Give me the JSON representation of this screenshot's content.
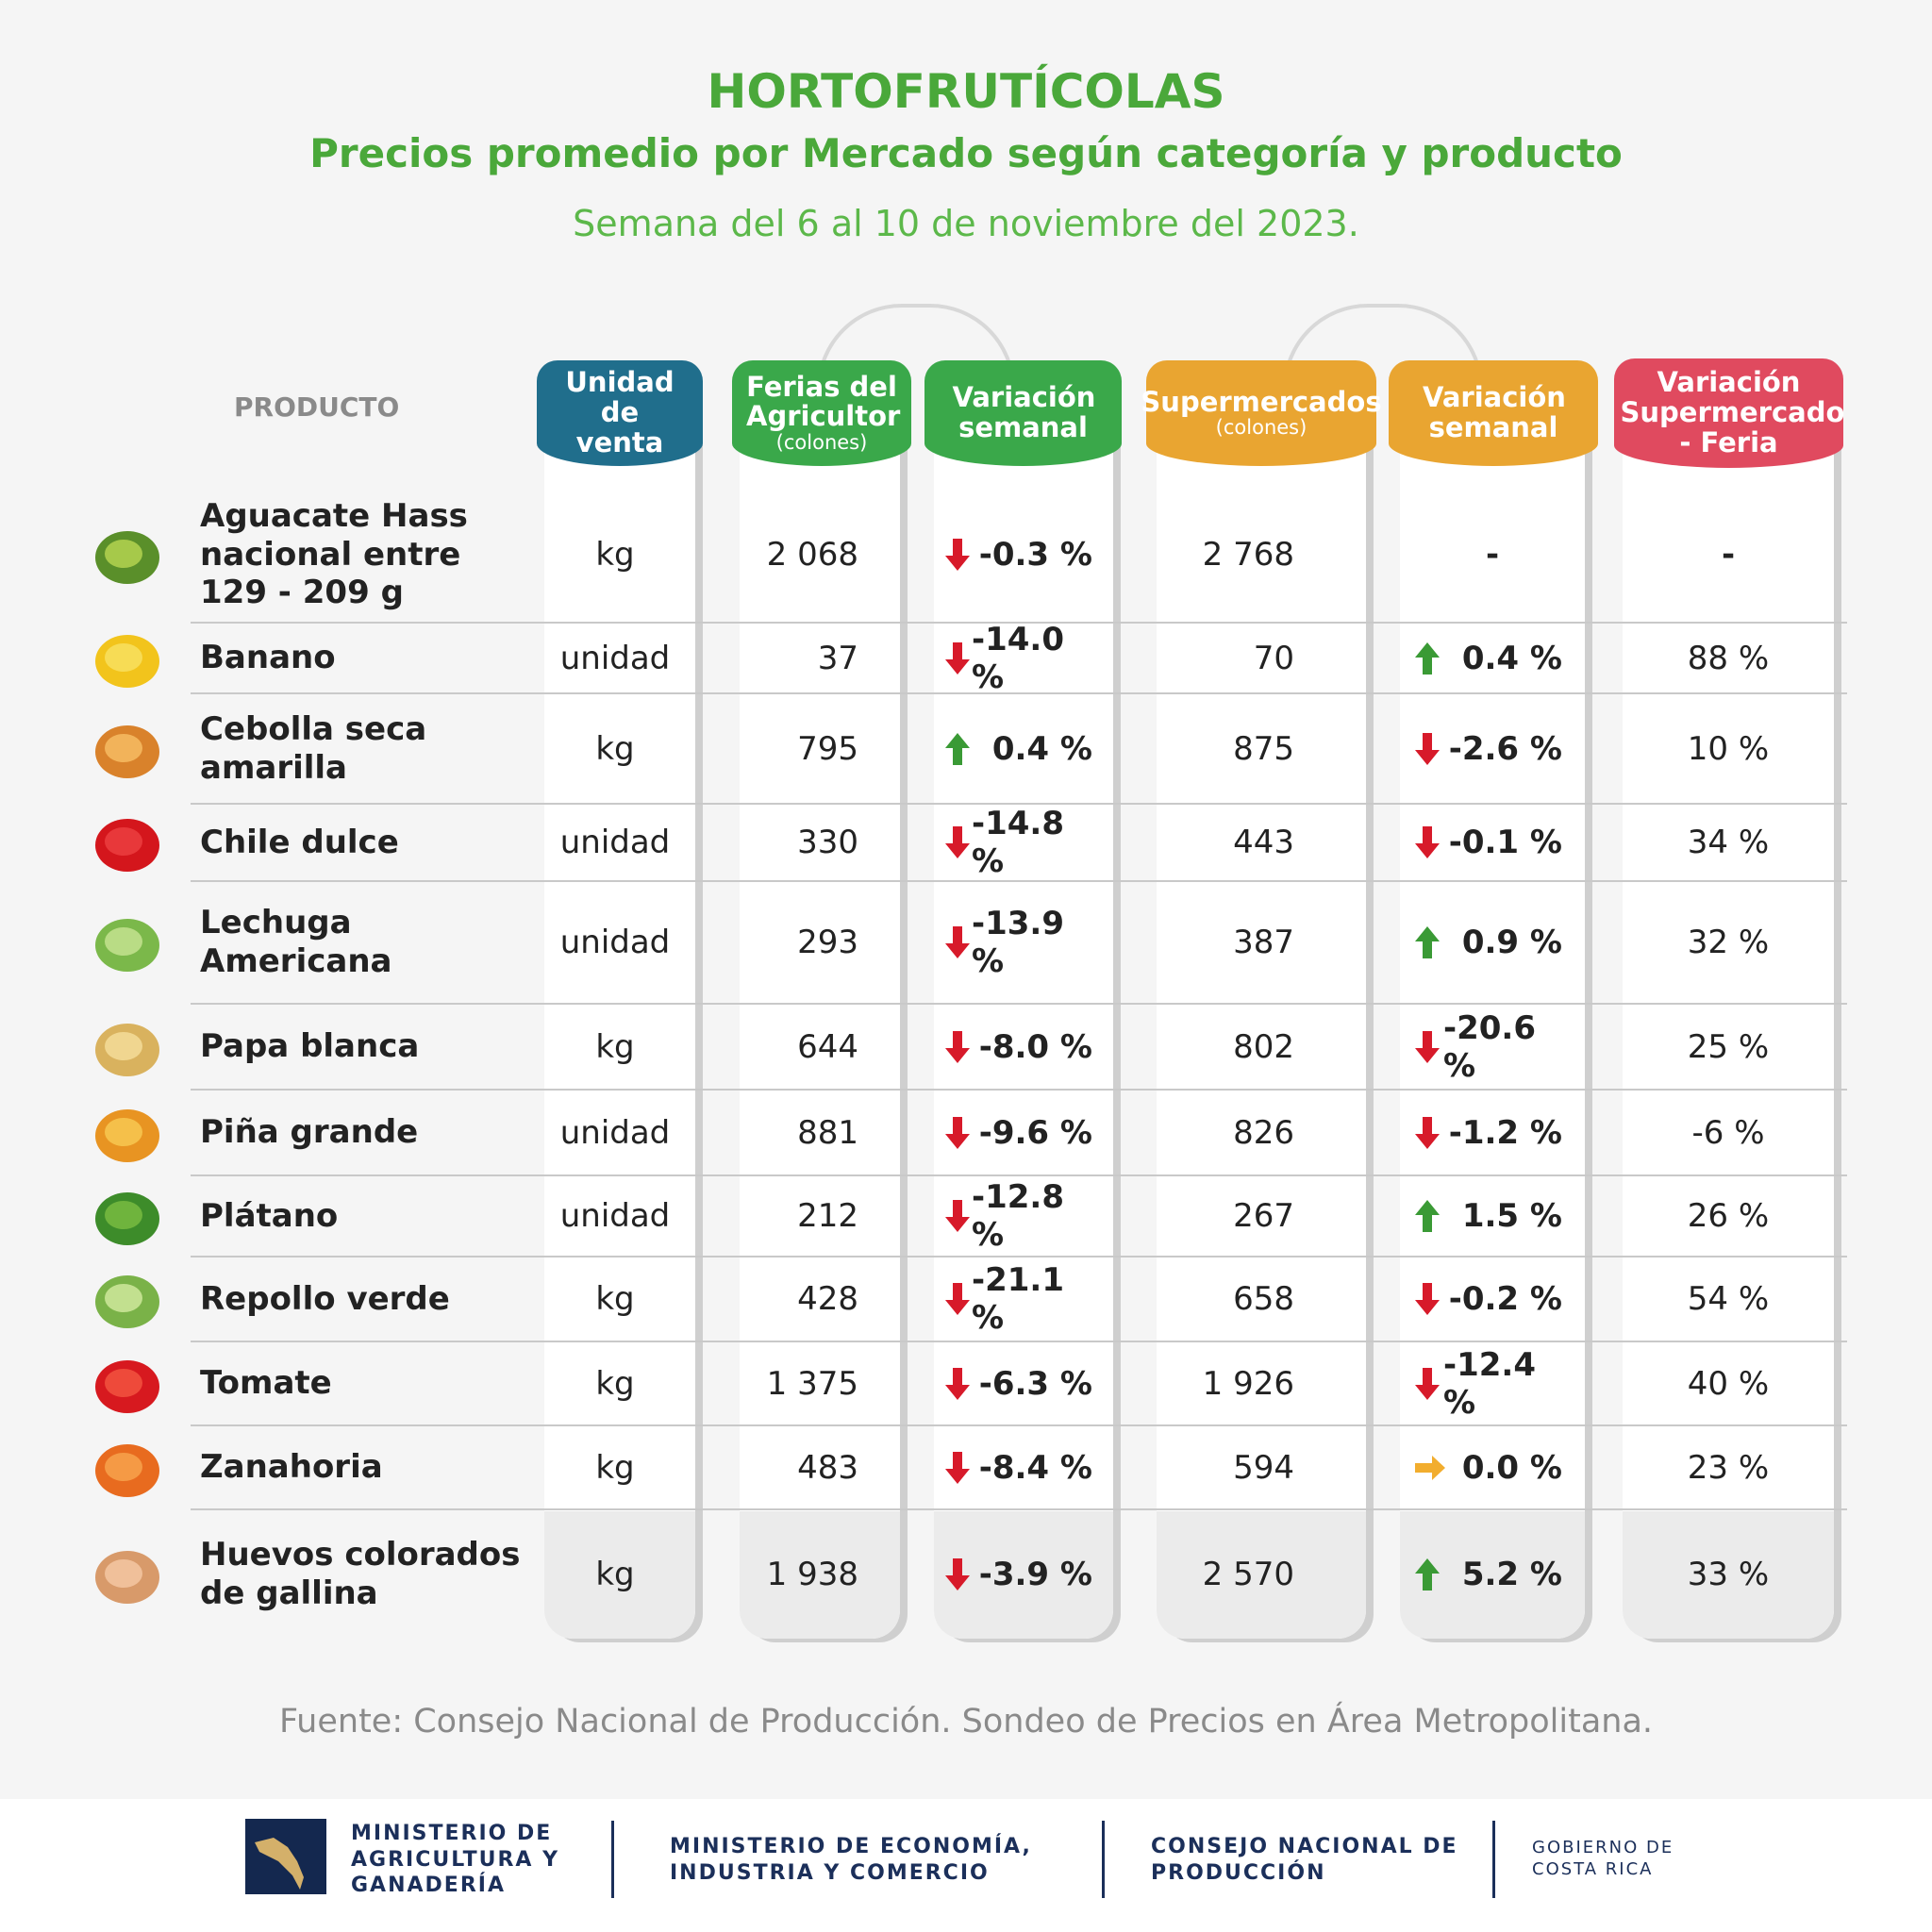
{
  "title": "HORTOFRUTÍCOLAS",
  "subtitle": "Precios promedio por Mercado según categoría y producto",
  "week": "Semana del 6 al 10 de noviembre del 2023.",
  "headers": {
    "product": "PRODUCTO",
    "unit": "Unidad de venta",
    "ferias": "Ferias del Agricultor",
    "ferias_sub": "(colones)",
    "var1": "Variación semanal",
    "super": "Supermercados",
    "super_sub": "(colones)",
    "var2": "Variación semanal",
    "diff": "Variación Supermercado - Feria"
  },
  "colors": {
    "unit": "#206e8c",
    "ferias": "#3aa84a",
    "super": "#e9a531",
    "diff": "#e04a5f",
    "down": "#d71a2a",
    "up": "#3a9a35",
    "flat": "#f2ad2e"
  },
  "rows": [
    {
      "name": "Aguacate Hass nacional entre 129 - 209 g",
      "icon": "avocado-icon",
      "unit": "kg",
      "ferias": "2 068",
      "var1": "-0.3 %",
      "dir1": "down",
      "super": "2 768",
      "var2": "-",
      "dir2": "none",
      "diff": "-"
    },
    {
      "name": "Banano",
      "icon": "banana-icon",
      "unit": "unidad",
      "ferias": "37",
      "var1": "-14.0 %",
      "dir1": "down",
      "super": "70",
      "var2": "0.4 %",
      "dir2": "up",
      "diff": "88 %"
    },
    {
      "name": "Cebolla seca amarilla",
      "icon": "onion-icon",
      "unit": "kg",
      "ferias": "795",
      "var1": "0.4 %",
      "dir1": "up",
      "super": "875",
      "var2": "-2.6 %",
      "dir2": "down",
      "diff": "10 %"
    },
    {
      "name": "Chile dulce",
      "icon": "pepper-icon",
      "unit": "unidad",
      "ferias": "330",
      "var1": "-14.8 %",
      "dir1": "down",
      "super": "443",
      "var2": "-0.1 %",
      "dir2": "down",
      "diff": "34 %"
    },
    {
      "name": "Lechuga Americana",
      "icon": "lettuce-icon",
      "unit": "unidad",
      "ferias": "293",
      "var1": "-13.9 %",
      "dir1": "down",
      "super": "387",
      "var2": "0.9 %",
      "dir2": "up",
      "diff": "32 %"
    },
    {
      "name": "Papa blanca",
      "icon": "potato-icon",
      "unit": "kg",
      "ferias": "644",
      "var1": "-8.0 %",
      "dir1": "down",
      "super": "802",
      "var2": "-20.6 %",
      "dir2": "down",
      "diff": "25 %"
    },
    {
      "name": "Piña grande",
      "icon": "pineapple-icon",
      "unit": "unidad",
      "ferias": "881",
      "var1": "-9.6 %",
      "dir1": "down",
      "super": "826",
      "var2": "-1.2 %",
      "dir2": "down",
      "diff": "-6 %"
    },
    {
      "name": "Plátano",
      "icon": "plantain-icon",
      "unit": "unidad",
      "ferias": "212",
      "var1": "-12.8 %",
      "dir1": "down",
      "super": "267",
      "var2": "1.5 %",
      "dir2": "up",
      "diff": "26 %"
    },
    {
      "name": "Repollo verde",
      "icon": "cabbage-icon",
      "unit": "kg",
      "ferias": "428",
      "var1": "-21.1 %",
      "dir1": "down",
      "super": "658",
      "var2": "-0.2 %",
      "dir2": "down",
      "diff": "54 %"
    },
    {
      "name": "Tomate",
      "icon": "tomato-icon",
      "unit": "kg",
      "ferias": "1 375",
      "var1": "-6.3 %",
      "dir1": "down",
      "super": "1 926",
      "var2": "-12.4 %",
      "dir2": "down",
      "diff": "40 %"
    },
    {
      "name": "Zanahoria",
      "icon": "carrot-icon",
      "unit": "kg",
      "ferias": "483",
      "var1": "-8.4 %",
      "dir1": "down",
      "super": "594",
      "var2": "0.0 %",
      "dir2": "flat",
      "diff": "23 %"
    },
    {
      "name": "Huevos colorados de gallina",
      "icon": "eggs-icon",
      "unit": "kg",
      "ferias": "1 938",
      "var1": "-3.9 %",
      "dir1": "down",
      "super": "2 570",
      "var2": "5.2 %",
      "dir2": "up",
      "diff": "33 %"
    }
  ],
  "source": "Fuente: Consejo Nacional de Producción. Sondeo de Precios en Área Metropolitana.",
  "footer": {
    "mag": "MINISTERIO DE AGRICULTURA Y GANADERÍA",
    "meic": "MINISTERIO DE ECONOMÍA, INDUSTRIA Y COMERCIO",
    "cnp": "CONSEJO NACIONAL DE PRODUCCIÓN",
    "gob": "GOBIERNO DE COSTA RICA"
  }
}
